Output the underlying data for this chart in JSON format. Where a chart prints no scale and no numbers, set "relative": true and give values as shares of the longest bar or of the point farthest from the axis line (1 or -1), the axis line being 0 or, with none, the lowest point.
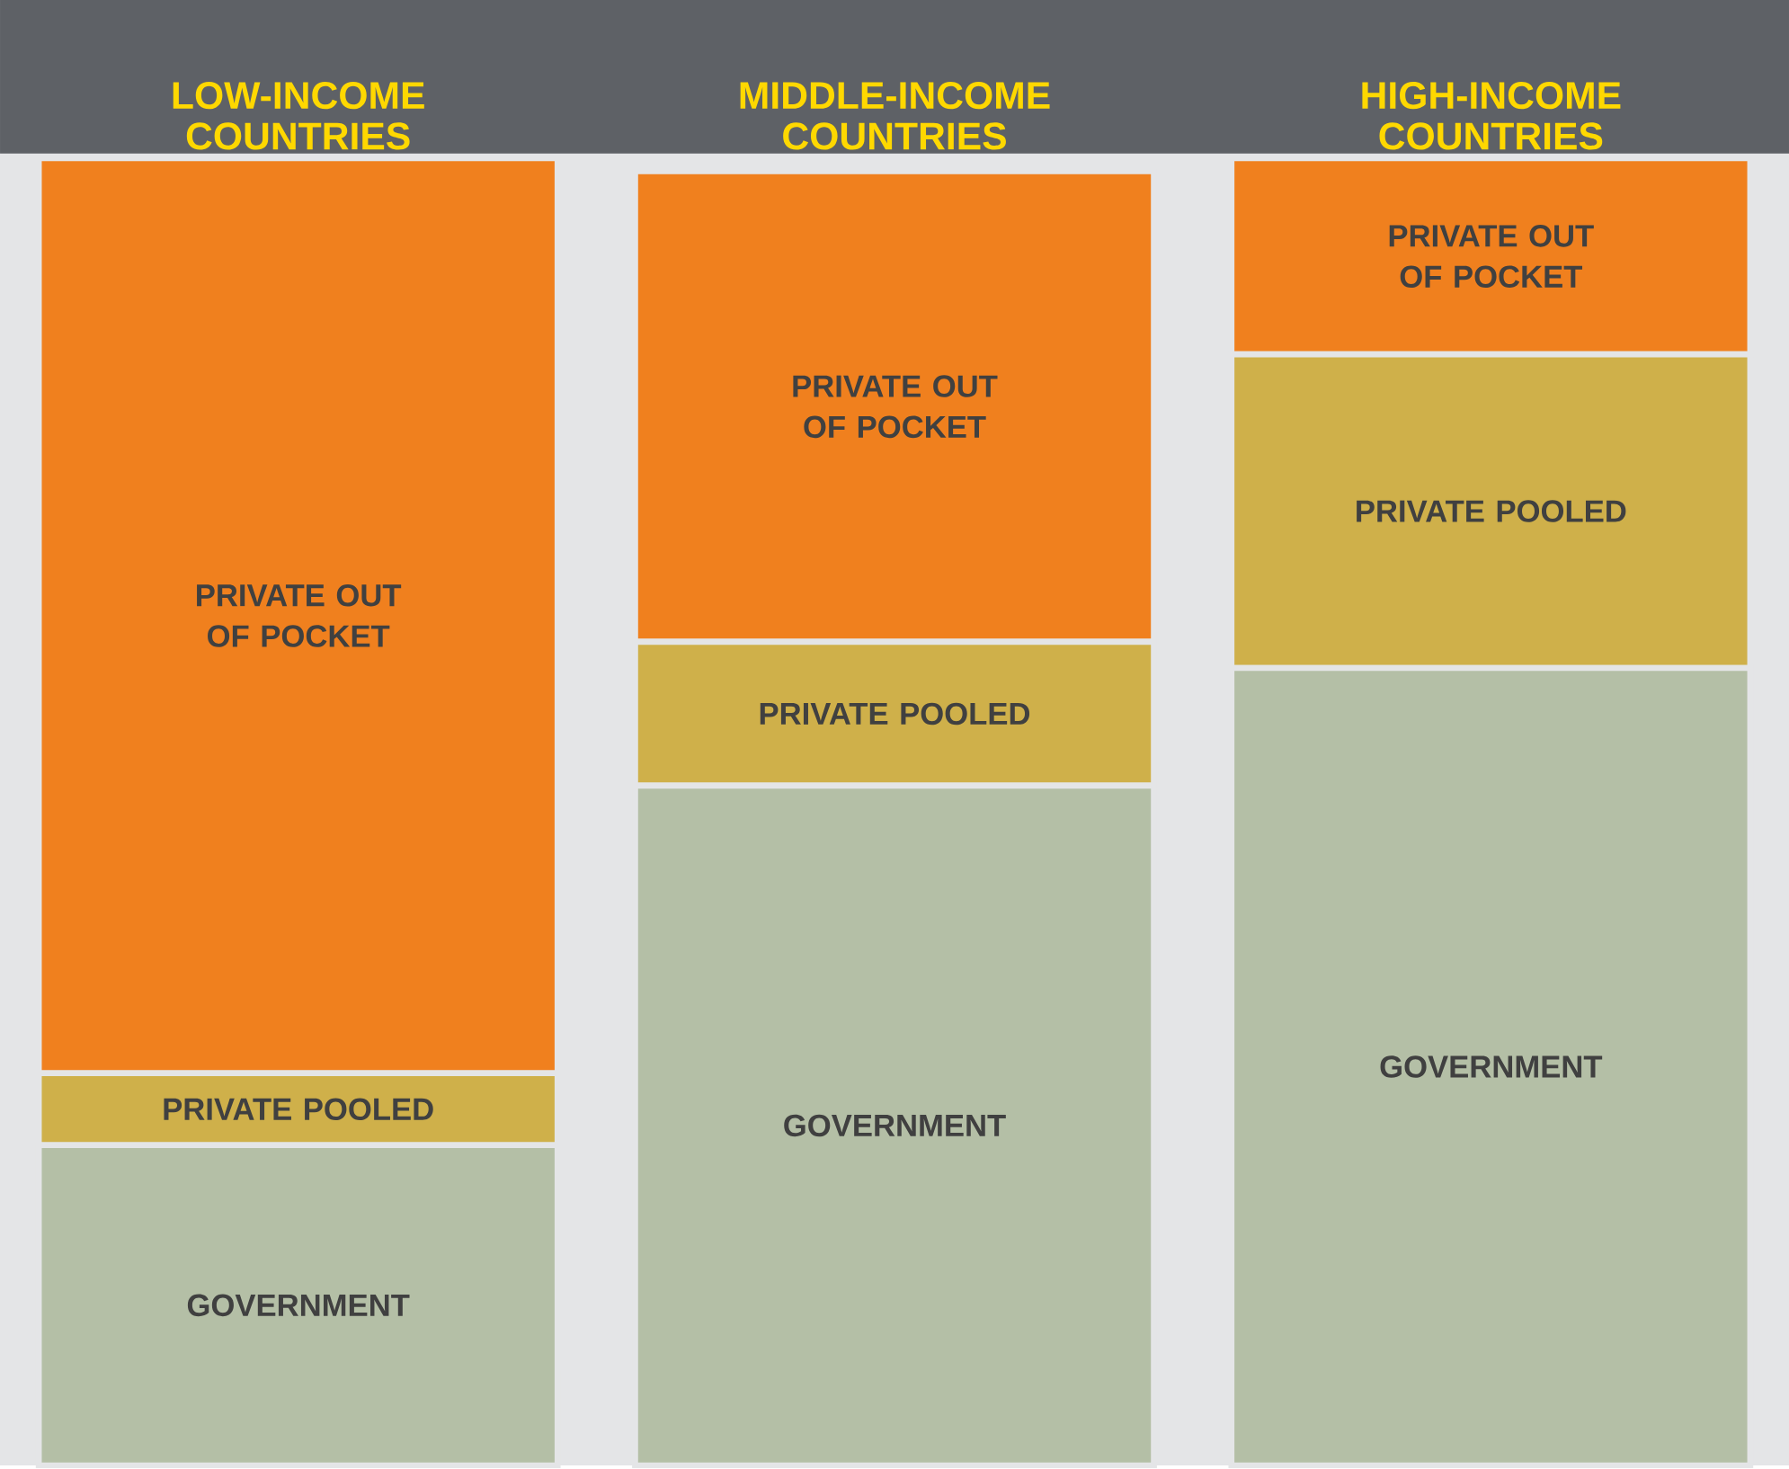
{
  "chart_data": {
    "type": "bar",
    "stacked": true,
    "relative": true,
    "legend": false,
    "categories": [
      "LOW-INCOME COUNTRIES",
      "MIDDLE-INCOME COUNTRIES",
      "HIGH-INCOME COUNTRIES"
    ],
    "series": [
      {
        "name": "GOVERNMENT",
        "color": "#b4bfa6",
        "values": [
          0.245,
          0.52,
          0.61
        ]
      },
      {
        "name": "PRIVATE POOLED",
        "color": "#cfb04a",
        "values": [
          0.055,
          0.11,
          0.24
        ]
      },
      {
        "name": "PRIVATE OUT OF POCKET",
        "color": "#f0801e",
        "values": [
          0.7,
          0.36,
          0.15
        ]
      }
    ]
  }
}
